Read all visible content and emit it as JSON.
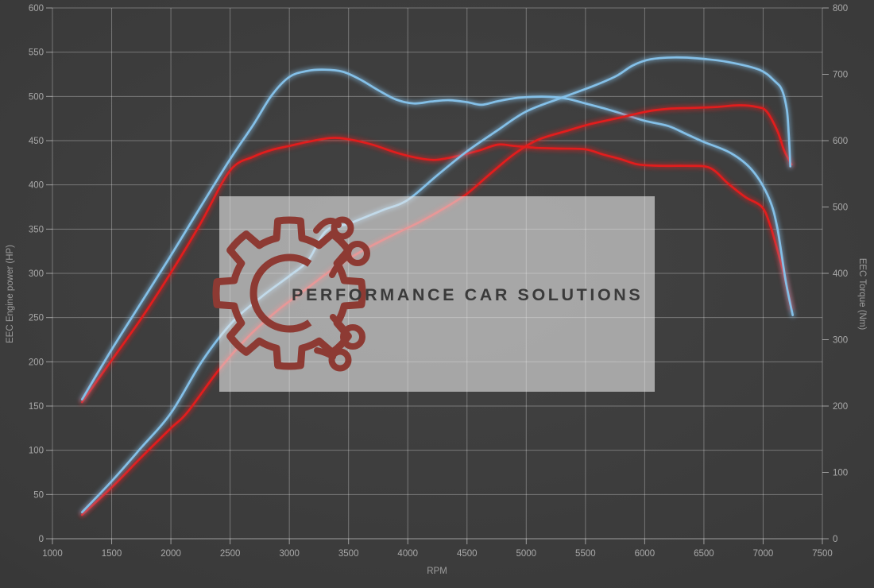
{
  "chart_data": {
    "type": "line",
    "title": "",
    "xlabel": "RPM",
    "ylabel_left": "EEC Engine power (HP)",
    "ylabel_right": "EEC Torque (Nm)",
    "x_range": [
      1000,
      7500
    ],
    "y_left_range": [
      0,
      600
    ],
    "y_right_range": [
      0,
      800
    ],
    "x_ticks": [
      1000,
      1500,
      2000,
      2500,
      3000,
      3500,
      4000,
      4500,
      5000,
      5500,
      6000,
      6500,
      7000,
      7500
    ],
    "y_left_ticks": [
      0,
      50,
      100,
      150,
      200,
      250,
      300,
      350,
      400,
      450,
      500,
      550,
      600
    ],
    "y_right_ticks": [
      0,
      100,
      200,
      300,
      400,
      500,
      600,
      700,
      800
    ],
    "grid": true,
    "legend": "none",
    "series": [
      {
        "name": "torque-red",
        "axis": "right",
        "color": "#e21d1d",
        "points": [
          [
            1250,
            206
          ],
          [
            1500,
            269
          ],
          [
            1750,
            332
          ],
          [
            2000,
            401
          ],
          [
            2250,
            475
          ],
          [
            2500,
            555
          ],
          [
            2700,
            576
          ],
          [
            2850,
            586
          ],
          [
            3000,
            592
          ],
          [
            3150,
            598
          ],
          [
            3350,
            604
          ],
          [
            3500,
            602
          ],
          [
            3700,
            594
          ],
          [
            3900,
            582
          ],
          [
            4080,
            574
          ],
          [
            4230,
            571
          ],
          [
            4400,
            576
          ],
          [
            4600,
            585
          ],
          [
            4760,
            594
          ],
          [
            4900,
            592
          ],
          [
            5100,
            589
          ],
          [
            5300,
            588
          ],
          [
            5500,
            587
          ],
          [
            5650,
            579
          ],
          [
            5800,
            572
          ],
          [
            5950,
            564
          ],
          [
            6150,
            562
          ],
          [
            6350,
            562
          ],
          [
            6550,
            559
          ],
          [
            6700,
            536
          ],
          [
            6850,
            515
          ],
          [
            6990,
            500
          ],
          [
            7060,
            472
          ],
          [
            7125,
            432
          ],
          [
            7180,
            395
          ],
          [
            7240,
            347
          ]
        ]
      },
      {
        "name": "torque-blue",
        "axis": "right",
        "color": "#84c0e8",
        "points": [
          [
            1250,
            210
          ],
          [
            1500,
            285
          ],
          [
            1750,
            356
          ],
          [
            2000,
            427
          ],
          [
            2250,
            500
          ],
          [
            2500,
            572
          ],
          [
            2700,
            625
          ],
          [
            2850,
            668
          ],
          [
            3000,
            696
          ],
          [
            3150,
            705
          ],
          [
            3300,
            707
          ],
          [
            3450,
            704
          ],
          [
            3600,
            692
          ],
          [
            3750,
            676
          ],
          [
            3900,
            662
          ],
          [
            4050,
            656
          ],
          [
            4200,
            659
          ],
          [
            4350,
            661
          ],
          [
            4500,
            658
          ],
          [
            4620,
            654
          ],
          [
            4750,
            659
          ],
          [
            4900,
            664
          ],
          [
            5050,
            666
          ],
          [
            5200,
            666
          ],
          [
            5350,
            663
          ],
          [
            5500,
            656
          ],
          [
            5650,
            649
          ],
          [
            5800,
            641
          ],
          [
            6000,
            630
          ],
          [
            6200,
            622
          ],
          [
            6350,
            610
          ],
          [
            6500,
            598
          ],
          [
            6730,
            581
          ],
          [
            6910,
            555
          ],
          [
            7050,
            513
          ],
          [
            7120,
            468
          ],
          [
            7190,
            389
          ],
          [
            7250,
            337
          ]
        ]
      },
      {
        "name": "power-red",
        "axis": "left",
        "color": "#e21d1d",
        "points": [
          [
            1250,
            27
          ],
          [
            1500,
            58
          ],
          [
            1750,
            92
          ],
          [
            2000,
            125
          ],
          [
            2140,
            143
          ],
          [
            2400,
            190
          ],
          [
            2650,
            228
          ],
          [
            2900,
            258
          ],
          [
            3150,
            283
          ],
          [
            3400,
            308
          ],
          [
            3650,
            328
          ],
          [
            3900,
            345
          ],
          [
            4100,
            358
          ],
          [
            4300,
            373
          ],
          [
            4500,
            390
          ],
          [
            4700,
            413
          ],
          [
            4900,
            435
          ],
          [
            5100,
            451
          ],
          [
            5340,
            461
          ],
          [
            5550,
            469
          ],
          [
            5790,
            476
          ],
          [
            6020,
            483
          ],
          [
            6200,
            486
          ],
          [
            6400,
            487
          ],
          [
            6600,
            488
          ],
          [
            6800,
            490
          ],
          [
            6950,
            488
          ],
          [
            7030,
            483
          ],
          [
            7120,
            461
          ],
          [
            7180,
            438
          ],
          [
            7240,
            423
          ]
        ]
      },
      {
        "name": "power-blue",
        "axis": "left",
        "color": "#84c0e8",
        "points": [
          [
            1250,
            30
          ],
          [
            1500,
            65
          ],
          [
            1750,
            103
          ],
          [
            2000,
            142
          ],
          [
            2270,
            202
          ],
          [
            2520,
            245
          ],
          [
            2770,
            274
          ],
          [
            3000,
            297
          ],
          [
            3160,
            315
          ],
          [
            3310,
            348
          ],
          [
            3500,
            356
          ],
          [
            3650,
            364
          ],
          [
            3800,
            372
          ],
          [
            4000,
            383
          ],
          [
            4250,
            411
          ],
          [
            4500,
            438
          ],
          [
            4750,
            461
          ],
          [
            5000,
            483
          ],
          [
            5310,
            499
          ],
          [
            5570,
            512
          ],
          [
            5760,
            523
          ],
          [
            5900,
            535
          ],
          [
            6050,
            542
          ],
          [
            6250,
            544
          ],
          [
            6450,
            543
          ],
          [
            6700,
            539
          ],
          [
            6970,
            530
          ],
          [
            7100,
            517
          ],
          [
            7160,
            507
          ],
          [
            7200,
            485
          ],
          [
            7215,
            460
          ],
          [
            7230,
            421
          ]
        ]
      }
    ]
  },
  "watermark": {
    "text": "PERFORMANCE CAR SOLUTIONS",
    "logo": "gear-circuit-logo",
    "box_color": "rgba(235,235,235,0.60)",
    "logo_color": "#8d3a33",
    "text_color": "#3a3a3a"
  },
  "colors": {
    "background": "#3a3a3a",
    "grid": "rgba(255,255,255,0.30)",
    "axis": "rgba(255,255,255,0.50)",
    "tick_text": "#a9a9a9",
    "curve_red": "#e21d1d",
    "curve_blue": "#84c0e8"
  }
}
